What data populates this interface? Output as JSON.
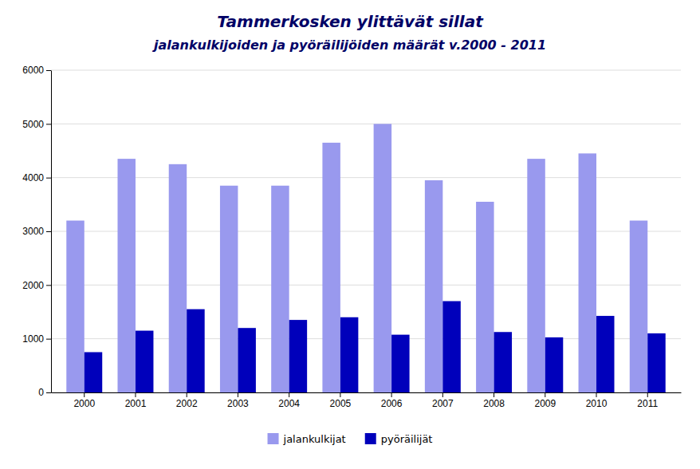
{
  "chart_data": {
    "type": "bar",
    "title": "Tammerkosken ylittävät sillat",
    "subtitle": "jalankulkijoiden ja pyöräilijöiden määrät v.2000 - 2011",
    "categories": [
      "2000",
      "2001",
      "2002",
      "2003",
      "2004",
      "2005",
      "2006",
      "2007",
      "2008",
      "2009",
      "2010",
      "2011"
    ],
    "series": [
      {
        "name": "jalankulkijat",
        "color": "#9999ee",
        "values": [
          3200,
          4350,
          4250,
          3850,
          3850,
          4650,
          5000,
          3950,
          3550,
          4350,
          4450,
          3200
        ]
      },
      {
        "name": "pyöräilijät",
        "color": "#0000bb",
        "values": [
          750,
          1150,
          1550,
          1200,
          1350,
          1400,
          1075,
          1700,
          1125,
          1025,
          1425,
          1100
        ]
      }
    ],
    "ylim": [
      0,
      6000
    ],
    "yticks": [
      0,
      1000,
      2000,
      3000,
      4000,
      5000,
      6000
    ],
    "grid": true,
    "legend": "bottom"
  }
}
